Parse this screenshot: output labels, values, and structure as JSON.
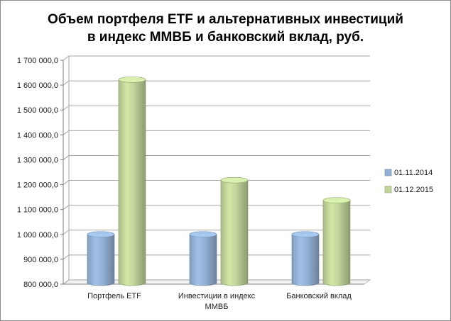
{
  "chart_data": {
    "type": "bar",
    "title": [
      "Объем портфеля ETF и альтернативных  инвестиций",
      "в индекс ММВБ и банковский  вклад,  руб."
    ],
    "categories": [
      [
        "Портфель ETF"
      ],
      [
        "Инвестиции в индекс",
        "ММВБ"
      ],
      [
        "Банковский вклад"
      ]
    ],
    "series": [
      {
        "name": "01.11.2014",
        "values": [
          1000000,
          1000000,
          1000000
        ],
        "color": "#95b3d7"
      },
      {
        "name": "01.12.2015",
        "values": [
          1622000,
          1218000,
          1137000
        ],
        "color": "#c3d69b"
      }
    ],
    "ylim": [
      800000,
      1700000
    ],
    "yticks": [
      "800 000,0",
      "900 000,0",
      "1 000 000,0",
      "1 100 000,0",
      "1 200 000,0",
      "1 300 000,0",
      "1 400 000,0",
      "1 500 000,0",
      "1 600 000,0",
      "1 700 000,0"
    ],
    "grid": true,
    "legend": "right",
    "style": "3d-cylinder"
  }
}
